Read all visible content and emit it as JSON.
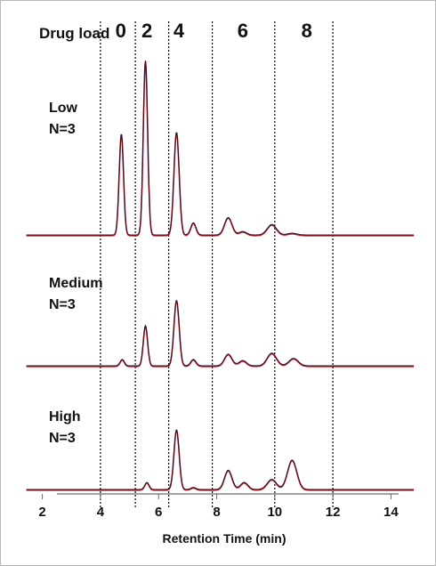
{
  "chart_data": {
    "type": "line",
    "title": "",
    "xlabel": "Retention Time (min)",
    "ylabel": "",
    "xlim": [
      1.4,
      15.0
    ],
    "x_ticks": [
      "2",
      "4",
      "6",
      "8",
      "10",
      "12",
      "14"
    ],
    "x_tick_values": [
      2,
      4,
      6,
      8,
      10,
      12,
      14
    ],
    "drug_load": {
      "label": "Drug load",
      "values": [
        "0",
        "2",
        "4",
        "6",
        "8"
      ],
      "label_centers": [
        4.7,
        5.6,
        6.7,
        8.9,
        11.1
      ],
      "boundaries": [
        4.0,
        5.2,
        6.35,
        7.85,
        10.0,
        12.0
      ]
    },
    "panels": [
      {
        "name": "Low",
        "n_label": "N=3",
        "peaks": [
          {
            "rt": 4.72,
            "height": 0.58
          },
          {
            "rt": 5.55,
            "height": 1.0
          },
          {
            "rt": 6.62,
            "height": 0.59
          },
          {
            "rt": 7.2,
            "height": 0.07
          },
          {
            "rt": 8.4,
            "height": 0.1
          },
          {
            "rt": 8.9,
            "height": 0.02
          },
          {
            "rt": 9.9,
            "height": 0.06
          },
          {
            "rt": 10.6,
            "height": 0.01
          }
        ]
      },
      {
        "name": "Medium",
        "n_label": "N=3",
        "peaks": [
          {
            "rt": 4.75,
            "height": 0.06
          },
          {
            "rt": 5.55,
            "height": 0.38
          },
          {
            "rt": 6.62,
            "height": 0.62
          },
          {
            "rt": 7.2,
            "height": 0.06
          },
          {
            "rt": 8.4,
            "height": 0.11
          },
          {
            "rt": 8.9,
            "height": 0.05
          },
          {
            "rt": 9.9,
            "height": 0.12
          },
          {
            "rt": 10.65,
            "height": 0.07
          }
        ]
      },
      {
        "name": "High",
        "n_label": "N=3",
        "peaks": [
          {
            "rt": 5.6,
            "height": 0.07
          },
          {
            "rt": 6.62,
            "height": 0.59
          },
          {
            "rt": 7.2,
            "height": 0.02
          },
          {
            "rt": 8.4,
            "height": 0.19
          },
          {
            "rt": 8.95,
            "height": 0.07
          },
          {
            "rt": 9.9,
            "height": 0.1
          },
          {
            "rt": 10.6,
            "height": 0.29
          }
        ]
      }
    ],
    "colors": {
      "trace_red": "#c0191c",
      "trace_dark": "#2b1030",
      "boundary": "#000000"
    }
  }
}
